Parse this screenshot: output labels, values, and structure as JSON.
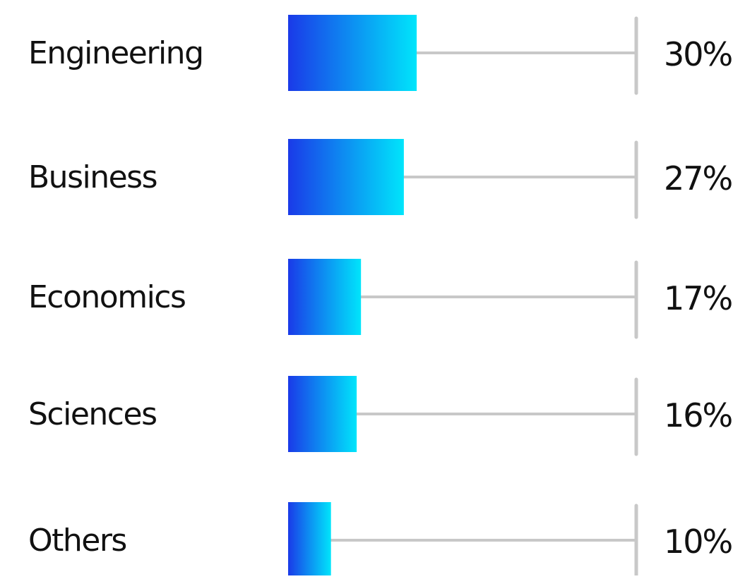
{
  "chart_data": {
    "type": "bar",
    "orientation": "horizontal",
    "categories": [
      "Engineering",
      "Business",
      "Economics",
      "Sciences",
      "Others"
    ],
    "values": [
      30,
      27,
      17,
      16,
      10
    ],
    "value_labels": [
      "30%",
      "27%",
      "17%",
      "16%",
      "10%"
    ],
    "xlim": [
      0,
      100
    ],
    "title": "",
    "xlabel": "",
    "ylabel": "",
    "grid": false,
    "legend": "none",
    "colors": {
      "bar_gradient_start": "#1a3ae8",
      "bar_gradient_end": "#00e5fb",
      "track": "#c8c8c8",
      "text": "#111111"
    }
  }
}
